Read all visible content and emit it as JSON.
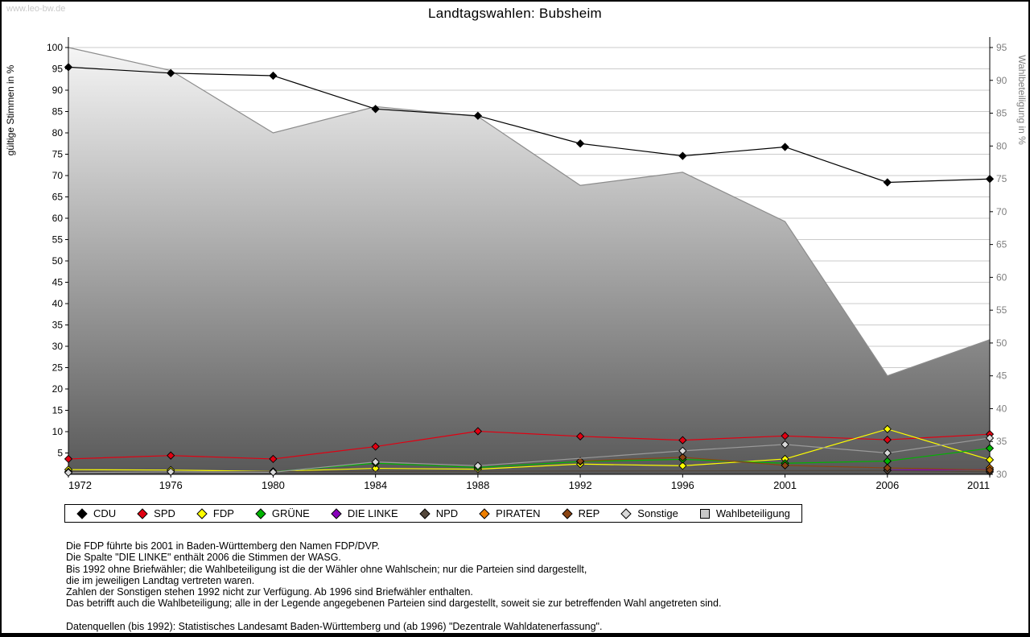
{
  "page": {
    "watermark": "www.leo-bw.de",
    "title": "Landtagswahlen: Bubsheim"
  },
  "chart_data": {
    "type": "line",
    "title": "Landtagswahlen: Bubsheim",
    "categories": [
      "1972",
      "1976",
      "1980",
      "1984",
      "1988",
      "1992",
      "1996",
      "2001",
      "2006",
      "2011"
    ],
    "left_axis": {
      "label": "gültige Stimmen in %",
      "min": 0,
      "max": 100,
      "step": 5
    },
    "right_axis": {
      "label": "Wahlbeteiligung in %",
      "min": 30,
      "max": 95,
      "step": 5
    },
    "grid": true,
    "legend_position": "bottom",
    "area_series": {
      "name": "Wahlbeteiligung",
      "axis": "right",
      "values": [
        95.0,
        91.5,
        82.0,
        86.0,
        84.5,
        74.0,
        76.0,
        68.5,
        45.0,
        50.5
      ],
      "fill_top": "#f5f5f5",
      "fill_bottom": "#585858",
      "stroke": "#8c8c8c"
    },
    "series": [
      {
        "name": "CDU",
        "color": "#000000",
        "values": [
          95.4,
          94.0,
          93.4,
          85.6,
          84.0,
          77.5,
          74.6,
          76.7,
          68.4,
          69.2
        ]
      },
      {
        "name": "SPD",
        "color": "#e10012",
        "values": [
          3.6,
          4.4,
          3.6,
          6.5,
          10.1,
          8.9,
          8.0,
          9.0,
          8.1,
          9.4
        ]
      },
      {
        "name": "FDP",
        "color": "#ffff00",
        "values": [
          1.1,
          1.0,
          0.7,
          1.4,
          1.2,
          2.4,
          2.0,
          3.6,
          10.6,
          3.4
        ]
      },
      {
        "name": "GRÜNE",
        "color": "#00b400",
        "values": [
          null,
          null,
          0.6,
          2.6,
          1.6,
          3.0,
          3.5,
          2.6,
          3.1,
          6.1
        ]
      },
      {
        "name": "DIE LINKE",
        "color": "#8800bb",
        "values": [
          null,
          null,
          null,
          null,
          null,
          null,
          null,
          null,
          1.0,
          1.1
        ]
      },
      {
        "name": "NPD",
        "color": "#54483c",
        "values": [
          0.6,
          null,
          null,
          null,
          null,
          null,
          null,
          null,
          0.9,
          0.6
        ]
      },
      {
        "name": "PIRATEN",
        "color": "#ee7f00",
        "values": [
          null,
          null,
          null,
          null,
          null,
          null,
          null,
          null,
          null,
          1.5
        ]
      },
      {
        "name": "REP",
        "color": "#8b4513",
        "values": [
          null,
          null,
          null,
          null,
          null,
          3.1,
          4.0,
          2.1,
          1.5,
          1.0
        ]
      },
      {
        "name": "Sonstige",
        "color": "#d9d9d9",
        "line": "#9a9a9a",
        "values": [
          0.4,
          0.6,
          0.5,
          2.9,
          2.0,
          null,
          5.5,
          7.0,
          5.0,
          8.5
        ]
      }
    ]
  },
  "footnotes": [
    "Die FDP führte bis 2001 in Baden-Württemberg den Namen FDP/DVP.",
    "Die Spalte \"DIE LINKE\" enthält 2006 die Stimmen der WASG.",
    "Bis 1992 ohne Briefwähler; die Wahlbeteiligung ist die der Wähler ohne Wahlschein; nur die Parteien sind dargestellt,",
    "die im jeweiligen Landtag vertreten waren.",
    "Zahlen der Sonstigen stehen 1992 nicht zur Verfügung. Ab 1996 sind Briefwähler enthalten.",
    "Das betrifft auch die Wahlbeteiligung; alle in der Legende angegebenen Parteien sind dargestellt, soweit sie zur betreffenden Wahl angetreten sind.",
    "",
    "Datenquellen (bis 1992): Statistisches Landesamt Baden-Württemberg und (ab 1996) \"Dezentrale Wahldatenerfassung\"."
  ]
}
